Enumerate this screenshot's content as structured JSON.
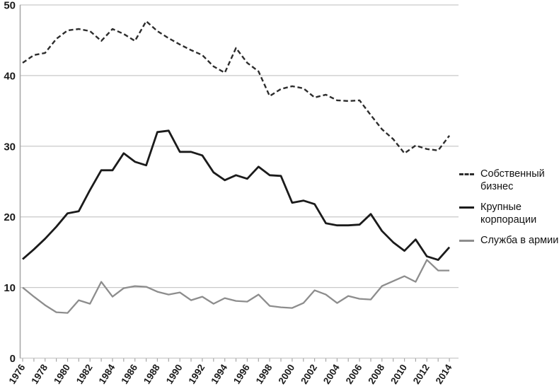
{
  "chart_data": {
    "type": "line",
    "x_start": 1976,
    "x_end": 2014,
    "x_tick_labels": [
      "1976",
      "1978",
      "1980",
      "1982",
      "1984",
      "1986",
      "1988",
      "1990",
      "1992",
      "1994",
      "1996",
      "1998",
      "2000",
      "2002",
      "2004",
      "2006",
      "2008",
      "2010",
      "2012",
      "2014"
    ],
    "y_ticks": [
      0,
      10,
      20,
      30,
      40,
      50
    ],
    "ylim": [
      0,
      50
    ],
    "grid": "horizontal",
    "legend_position": "right",
    "title": "",
    "xlabel": "",
    "ylabel": "",
    "colors": {
      "gridline": "#c9c9c9",
      "axis": "#a6a6a6",
      "label": "#1a1a1a"
    },
    "series": [
      {
        "name": "Собственный бизнес",
        "style": "dashed",
        "color": "#2d2d2d",
        "values": [
          41.8,
          42.9,
          43.2,
          45.2,
          46.4,
          46.6,
          46.3,
          44.9,
          46.6,
          45.9,
          44.9,
          47.7,
          46.3,
          45.3,
          44.4,
          43.6,
          42.9,
          41.3,
          40.4,
          43.9,
          41.8,
          40.6,
          37.1,
          38.1,
          38.5,
          38.2,
          36.9,
          37.3,
          36.5,
          36.4,
          36.5,
          34.4,
          32.4,
          31.0,
          29.0,
          30.1,
          29.6,
          29.4,
          31.5
        ]
      },
      {
        "name": "Крупные корпорации",
        "style": "solid",
        "color": "#1b1b1b",
        "values": [
          14.0,
          15.4,
          16.9,
          18.6,
          20.5,
          20.8,
          23.8,
          26.6,
          26.6,
          29.0,
          27.8,
          27.3,
          32.0,
          32.2,
          29.2,
          29.2,
          28.7,
          26.3,
          25.2,
          25.9,
          25.4,
          27.1,
          25.9,
          25.8,
          22.0,
          22.3,
          21.8,
          19.1,
          18.8,
          18.8,
          18.9,
          20.4,
          18.0,
          16.4,
          15.2,
          16.8,
          14.4,
          13.9,
          15.7
        ]
      },
      {
        "name": "Служба в армии",
        "style": "solid",
        "color": "#8d8d8d",
        "values": [
          10.0,
          8.7,
          7.5,
          6.5,
          6.4,
          8.2,
          7.7,
          10.8,
          8.7,
          9.9,
          10.2,
          10.1,
          9.4,
          9.0,
          9.3,
          8.2,
          8.7,
          7.7,
          8.5,
          8.1,
          8.0,
          9.0,
          7.4,
          7.2,
          7.1,
          7.8,
          9.6,
          9.0,
          7.8,
          8.8,
          8.4,
          8.3,
          10.2,
          10.9,
          11.6,
          10.8,
          13.9,
          12.4,
          12.4
        ]
      }
    ]
  }
}
